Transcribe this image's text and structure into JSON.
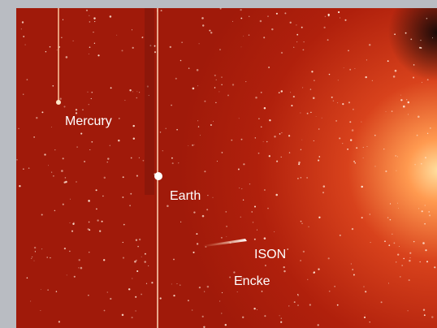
{
  "labels": [
    "Mercury",
    "Earth",
    "ISON",
    "Encke"
  ]
}
